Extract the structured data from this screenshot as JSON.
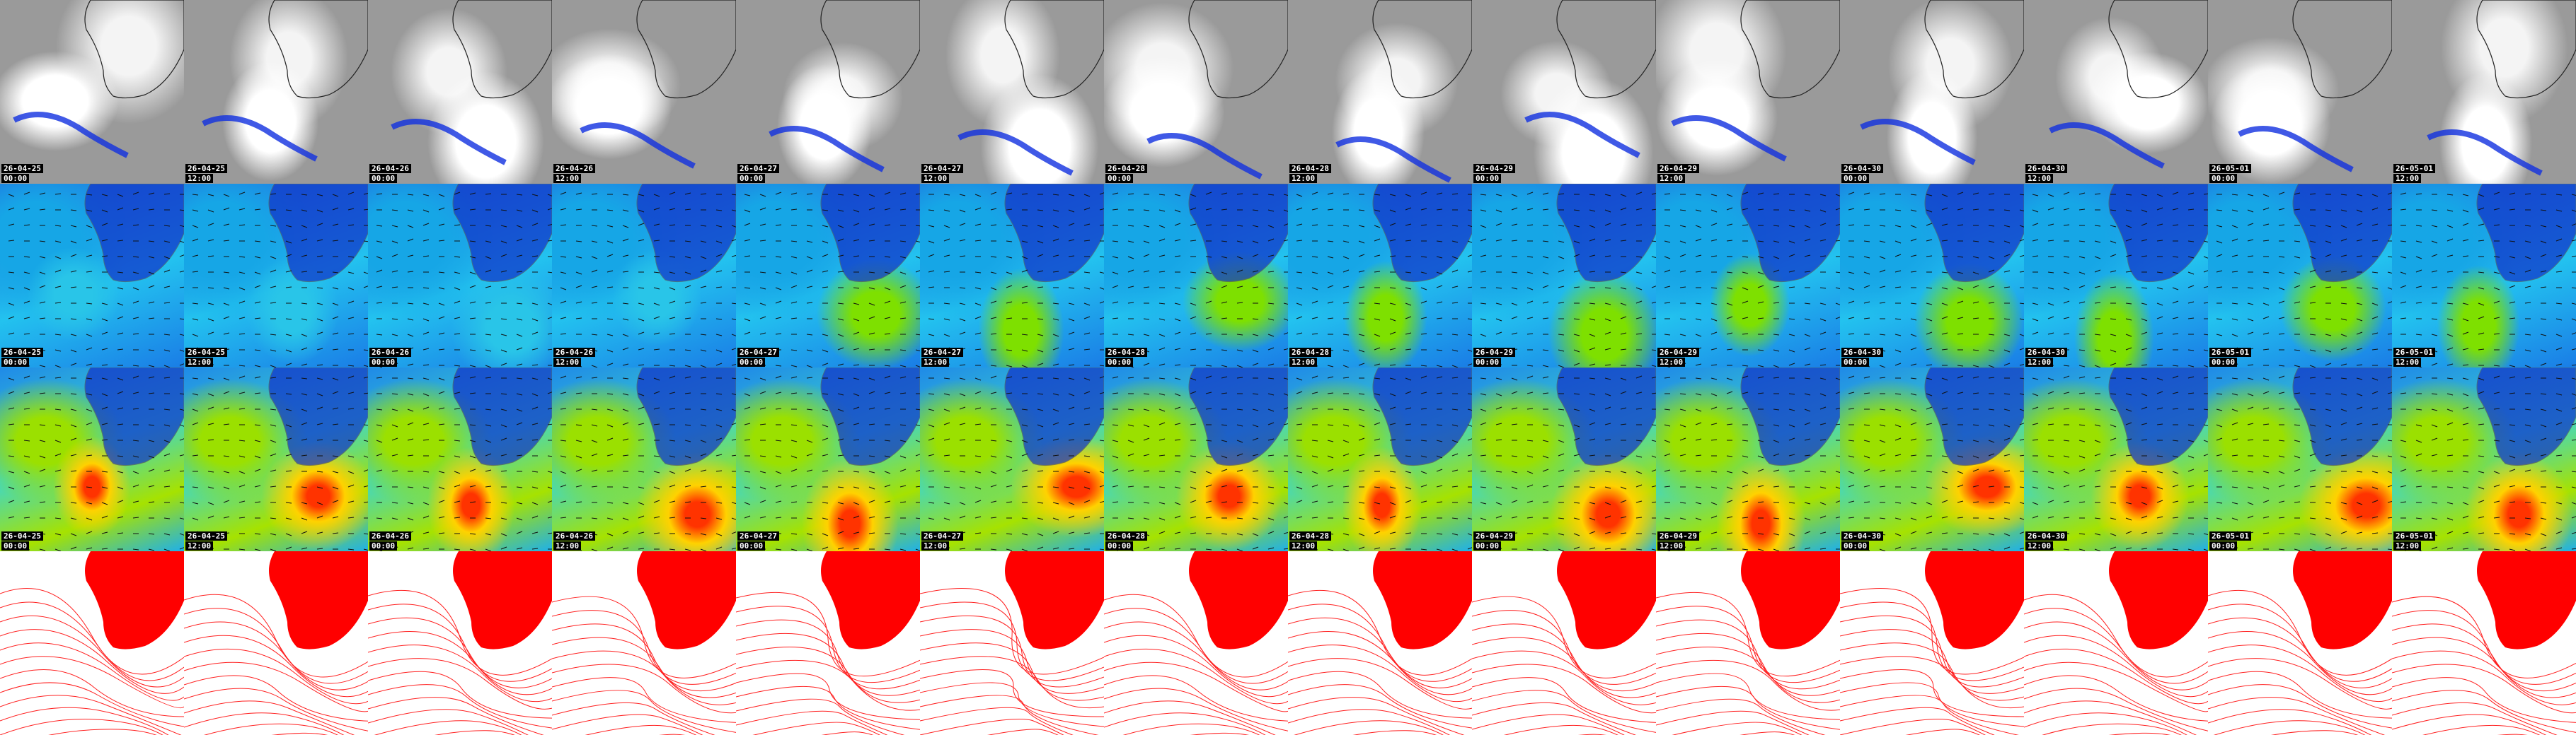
{
  "columns": [
    {
      "date": "26-04-25",
      "time": "00:00"
    },
    {
      "date": "26-04-25",
      "time": "12:00"
    },
    {
      "date": "26-04-26",
      "time": "00:00"
    },
    {
      "date": "26-04-26",
      "time": "12:00"
    },
    {
      "date": "26-04-27",
      "time": "00:00"
    },
    {
      "date": "26-04-27",
      "time": "12:00"
    },
    {
      "date": "26-04-28",
      "time": "00:00"
    },
    {
      "date": "26-04-28",
      "time": "12:00"
    },
    {
      "date": "26-04-29",
      "time": "00:00"
    },
    {
      "date": "26-04-29",
      "time": "12:00"
    },
    {
      "date": "26-04-30",
      "time": "00:00"
    },
    {
      "date": "26-04-30",
      "time": "12:00"
    },
    {
      "date": "26-05-01",
      "time": "00:00"
    },
    {
      "date": "26-05-01",
      "time": "12:00"
    }
  ]
}
